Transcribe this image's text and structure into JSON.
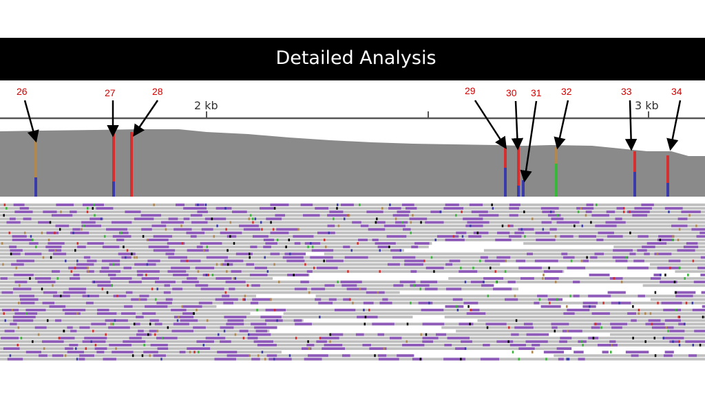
{
  "slide": {
    "title": "Detailed Analysis"
  },
  "ruler": {
    "ticks": [
      "2 kb",
      "3 kb"
    ]
  },
  "variants": [
    {
      "id": "26",
      "top_color": "#b08850",
      "bottom_color": "#3a3aa8"
    },
    {
      "id": "27",
      "top_color": "#d43030",
      "bottom_color": "#3a3aa8"
    },
    {
      "id": "28",
      "top_color": "#d43030",
      "bottom_color": "#d43030"
    },
    {
      "id": "29",
      "top_color": "#d43030",
      "bottom_color": "#3a3aa8"
    },
    {
      "id": "30",
      "top_color": "#d43030",
      "bottom_color": "#3a3aa8"
    },
    {
      "id": "31",
      "top_color": "#8a8a8a",
      "bottom_color": "#3a3aa8"
    },
    {
      "id": "32",
      "top_color": "#b08850",
      "bottom_color": "#38b838"
    },
    {
      "id": "33",
      "top_color": "#d43030",
      "bottom_color": "#3a3aa8"
    },
    {
      "id": "34",
      "top_color": "#d43030",
      "bottom_color": "#3a3aa8"
    }
  ],
  "colors": {
    "title_bar": "#000000",
    "coverage": "#8a8a8a",
    "read": "#c0c0c0",
    "read_highlight": "#8e5cb8",
    "label": "#d40000"
  }
}
